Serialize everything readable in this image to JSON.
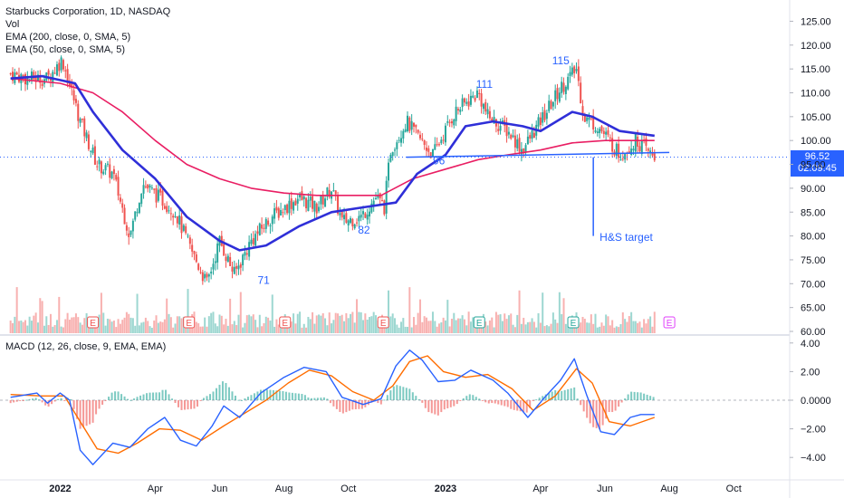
{
  "header": {
    "title": "Starbucks Corporation, 1D, NASDAQ",
    "vol_label": "Vol",
    "ema200_label": "EMA (200, close, 0, SMA, 5)",
    "ema50_label": "EMA (50, close, 0, SMA, 5)",
    "macd_label": "MACD (12, 26, close, 9, EMA, EMA)"
  },
  "price_tag": {
    "price": "96.52",
    "countdown": "02:09:45"
  },
  "colors": {
    "up": "#26a69a",
    "down": "#ef5350",
    "ema200": "#e91e63",
    "ema50": "#2f2fd8",
    "annotation": "#2962ff",
    "macd": "#2962ff",
    "signal": "#ff6d00"
  },
  "chart_data": [
    {
      "type": "candlestick",
      "title": "Starbucks Corporation, 1D, NASDAQ",
      "x_ticks": [
        "2022",
        "Apr",
        "Jun",
        "Aug",
        "Oct",
        "2023",
        "Apr",
        "Jun",
        "Aug",
        "Oct"
      ],
      "y_ticks": [
        "125.00",
        "120.00",
        "115.00",
        "110.00",
        "105.00",
        "100.00",
        "95.00",
        "90.00",
        "85.00",
        "80.00",
        "75.00",
        "70.00",
        "65.00",
        "60.00"
      ],
      "ylim": [
        60,
        127
      ],
      "last_price": 96.52,
      "price_path": [
        [
          "2021-11-15",
          114
        ],
        [
          "2021-12-01",
          113
        ],
        [
          "2021-12-20",
          113
        ],
        [
          "2022-01-03",
          117
        ],
        [
          "2022-01-20",
          104
        ],
        [
          "2022-02-05",
          95
        ],
        [
          "2022-02-20",
          93
        ],
        [
          "2022-03-08",
          80
        ],
        [
          "2022-03-20",
          91
        ],
        [
          "2022-04-05",
          88
        ],
        [
          "2022-04-20",
          85
        ],
        [
          "2022-05-05",
          77
        ],
        [
          "2022-05-20",
          70
        ],
        [
          "2022-06-01",
          79
        ],
        [
          "2022-06-15",
          72
        ],
        [
          "2022-07-01",
          79
        ],
        [
          "2022-07-20",
          84
        ],
        [
          "2022-08-15",
          88
        ],
        [
          "2022-09-01",
          86
        ],
        [
          "2022-09-15",
          90
        ],
        [
          "2022-09-25",
          83
        ],
        [
          "2022-10-13",
          84
        ],
        [
          "2022-10-27",
          88
        ],
        [
          "2022-11-04",
          86
        ],
        [
          "2022-11-10",
          98
        ],
        [
          "2022-11-25",
          104
        ],
        [
          "2022-12-05",
          101
        ],
        [
          "2022-12-20",
          97
        ],
        [
          "2023-01-10",
          106
        ],
        [
          "2023-02-01",
          110
        ],
        [
          "2023-02-10",
          105
        ],
        [
          "2023-03-01",
          102
        ],
        [
          "2023-03-15",
          98
        ],
        [
          "2023-04-01",
          104
        ],
        [
          "2023-04-20",
          111
        ],
        [
          "2023-05-05",
          115
        ],
        [
          "2023-05-12",
          105
        ],
        [
          "2023-05-25",
          103
        ],
        [
          "2023-06-05",
          100
        ],
        [
          "2023-06-15",
          97
        ],
        [
          "2023-07-01",
          100
        ],
        [
          "2023-07-12",
          97.5
        ],
        [
          "2023-07-18",
          96.52
        ]
      ],
      "series": [
        {
          "name": "EMA (200, close, 0, SMA, 5)",
          "points": [
            [
              "2021-11-15",
              113
            ],
            [
              "2022-01-01",
              112
            ],
            [
              "2022-02-01",
              110
            ],
            [
              "2022-03-01",
              106
            ],
            [
              "2022-04-01",
              100
            ],
            [
              "2022-05-01",
              95
            ],
            [
              "2022-06-01",
              92
            ],
            [
              "2022-07-01",
              90
            ],
            [
              "2022-08-01",
              89
            ],
            [
              "2022-09-01",
              88.5
            ],
            [
              "2022-10-01",
              88.5
            ],
            [
              "2022-11-01",
              88.5
            ],
            [
              "2022-12-01",
              92
            ],
            [
              "2023-01-01",
              94
            ],
            [
              "2023-02-01",
              96
            ],
            [
              "2023-03-01",
              97
            ],
            [
              "2023-04-01",
              98
            ],
            [
              "2023-05-01",
              99.5
            ],
            [
              "2023-06-01",
              100
            ],
            [
              "2023-07-18",
              100
            ]
          ]
        },
        {
          "name": "EMA (50, close, 0, SMA, 5)",
          "points": [
            [
              "2021-11-15",
              113
            ],
            [
              "2021-12-15",
              113.5
            ],
            [
              "2022-01-15",
              112
            ],
            [
              "2022-02-01",
              106
            ],
            [
              "2022-03-01",
              98
            ],
            [
              "2022-04-01",
              92
            ],
            [
              "2022-05-01",
              84
            ],
            [
              "2022-06-01",
              79
            ],
            [
              "2022-06-20",
              77
            ],
            [
              "2022-07-15",
              78
            ],
            [
              "2022-08-15",
              82
            ],
            [
              "2022-09-15",
              85
            ],
            [
              "2022-10-15",
              86
            ],
            [
              "2022-11-15",
              87
            ],
            [
              "2022-12-05",
              93
            ],
            [
              "2023-01-01",
              97
            ],
            [
              "2023-01-20",
              103
            ],
            [
              "2023-02-15",
              104
            ],
            [
              "2023-03-15",
              103
            ],
            [
              "2023-04-01",
              102
            ],
            [
              "2023-05-01",
              106
            ],
            [
              "2023-05-20",
              105
            ],
            [
              "2023-06-15",
              102
            ],
            [
              "2023-07-18",
              101
            ]
          ]
        }
      ],
      "annotations": [
        {
          "text": "71",
          "date": "2022-07-07",
          "price": 70
        },
        {
          "text": "82",
          "date": "2022-10-10",
          "price": 80.5
        },
        {
          "text": "96",
          "date": "2022-12-20",
          "price": 95
        },
        {
          "text": "111",
          "date": "2023-01-30",
          "price": 111
        },
        {
          "text": "115",
          "date": "2023-04-12",
          "price": 116
        },
        {
          "text": "H&S target",
          "date": "2023-05-27",
          "price": 79
        }
      ],
      "neckline": [
        [
          "2022-11-25",
          96.5
        ],
        [
          "2023-08-01",
          97.5
        ]
      ],
      "target_line": {
        "date": "2023-05-21",
        "from": 96.5,
        "to": 80
      },
      "earnings_markers": [
        "2022-02-01",
        "2022-05-03",
        "2022-08-02",
        "2022-11-03",
        "2023-02-02",
        "2023-05-02",
        "2023-08-01"
      ]
    },
    {
      "type": "line",
      "title": "MACD (12, 26, close, 9, EMA, EMA)",
      "y_ticks": [
        "4.00",
        "2.00",
        "0.0000",
        "−2.00",
        "−4.00"
      ],
      "ylim": [
        -5,
        4.3
      ],
      "series": [
        {
          "name": "MACD",
          "points": [
            [
              "2021-11-15",
              0.2
            ],
            [
              "2021-12-10",
              0.5
            ],
            [
              "2021-12-20",
              -0.2
            ],
            [
              "2022-01-01",
              0.5
            ],
            [
              "2022-01-10",
              0
            ],
            [
              "2022-01-20",
              -3.5
            ],
            [
              "2022-02-01",
              -4.5
            ],
            [
              "2022-02-20",
              -3
            ],
            [
              "2022-03-08",
              -3.3
            ],
            [
              "2022-03-25",
              -2
            ],
            [
              "2022-04-10",
              -1.2
            ],
            [
              "2022-04-25",
              -2.8
            ],
            [
              "2022-05-10",
              -3.2
            ],
            [
              "2022-05-25",
              -1.8
            ],
            [
              "2022-06-05",
              -0.4
            ],
            [
              "2022-06-20",
              -1.2
            ],
            [
              "2022-07-10",
              0.5
            ],
            [
              "2022-08-01",
              1.6
            ],
            [
              "2022-08-20",
              2.3
            ],
            [
              "2022-09-10",
              2
            ],
            [
              "2022-09-25",
              0.2
            ],
            [
              "2022-10-15",
              -0.3
            ],
            [
              "2022-11-01",
              0.1
            ],
            [
              "2022-11-15",
              2.4
            ],
            [
              "2022-11-28",
              3.5
            ],
            [
              "2022-12-10",
              2.8
            ],
            [
              "2022-12-25",
              1.3
            ],
            [
              "2023-01-10",
              1.4
            ],
            [
              "2023-01-25",
              2.1
            ],
            [
              "2023-02-15",
              1.4
            ],
            [
              "2023-03-01",
              0.5
            ],
            [
              "2023-03-20",
              -1.2
            ],
            [
              "2023-04-05",
              0.2
            ],
            [
              "2023-04-20",
              1.4
            ],
            [
              "2023-05-03",
              2.9
            ],
            [
              "2023-05-15",
              0.3
            ],
            [
              "2023-05-28",
              -2.2
            ],
            [
              "2023-06-10",
              -2.4
            ],
            [
              "2023-06-25",
              -1.2
            ],
            [
              "2023-07-05",
              -1
            ],
            [
              "2023-07-18",
              -1.0
            ]
          ]
        },
        {
          "name": "Signal",
          "points": [
            [
              "2021-11-15",
              0.4
            ],
            [
              "2021-12-15",
              0.3
            ],
            [
              "2022-01-05",
              0.3
            ],
            [
              "2022-01-20",
              -1.5
            ],
            [
              "2022-02-05",
              -3.4
            ],
            [
              "2022-02-25",
              -3.7
            ],
            [
              "2022-03-15",
              -3
            ],
            [
              "2022-04-05",
              -2
            ],
            [
              "2022-04-25",
              -2.1
            ],
            [
              "2022-05-15",
              -2.8
            ],
            [
              "2022-06-05",
              -1.8
            ],
            [
              "2022-06-25",
              -0.9
            ],
            [
              "2022-07-15",
              0
            ],
            [
              "2022-08-05",
              1.2
            ],
            [
              "2022-08-25",
              2.1
            ],
            [
              "2022-09-15",
              1.7
            ],
            [
              "2022-10-05",
              0.6
            ],
            [
              "2022-10-25",
              0
            ],
            [
              "2022-11-12",
              1
            ],
            [
              "2022-11-28",
              2.7
            ],
            [
              "2022-12-15",
              3.1
            ],
            [
              "2022-12-30",
              2
            ],
            [
              "2023-01-20",
              1.6
            ],
            [
              "2023-02-10",
              1.8
            ],
            [
              "2023-03-05",
              0.8
            ],
            [
              "2023-03-25",
              -0.7
            ],
            [
              "2023-04-15",
              0.3
            ],
            [
              "2023-05-05",
              2.2
            ],
            [
              "2023-05-20",
              1.2
            ],
            [
              "2023-06-05",
              -1.5
            ],
            [
              "2023-06-25",
              -1.8
            ],
            [
              "2023-07-18",
              -1.2
            ]
          ]
        }
      ]
    }
  ]
}
